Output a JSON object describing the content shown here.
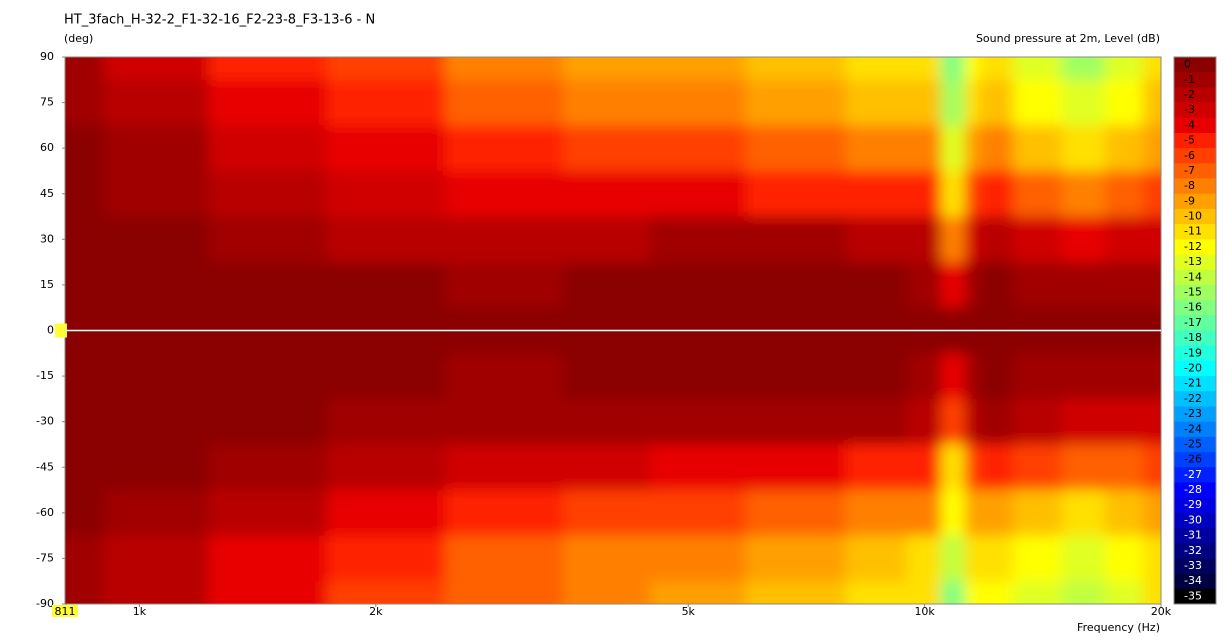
{
  "chart_data": {
    "type": "contour",
    "title": "HT_3fach_H-32-2_F1-32-16_F2-23-8_F3-13-6 - N",
    "ylabel": "(deg)",
    "xlabel": "Frequency  (Hz)",
    "colorbar_label": "Sound pressure at 2m, Level  (dB)",
    "xscale": "log",
    "xlim": [
      811,
      20000
    ],
    "xticks": [
      811,
      {
        "value": 1000,
        "label": "1k"
      },
      {
        "value": 2000,
        "label": "2k"
      },
      {
        "value": 5000,
        "label": "5k"
      },
      {
        "value": 10000,
        "label": "10k"
      },
      {
        "value": 20000,
        "label": "20k"
      }
    ],
    "ylim": [
      -90,
      90
    ],
    "yticks": [
      90,
      75,
      60,
      45,
      30,
      15,
      0,
      -15,
      -30,
      -45,
      -60,
      -75,
      -90
    ],
    "x": [
      811,
      1000,
      1500,
      2000,
      3000,
      4000,
      5000,
      7000,
      9000,
      10000,
      11000,
      11500,
      12000,
      14000,
      16000,
      18000,
      20000
    ],
    "y": [
      90,
      75,
      60,
      45,
      30,
      15,
      0,
      -15,
      -30,
      -45,
      -60,
      -75,
      -90
    ],
    "z": [
      [
        -1,
        -3,
        -5,
        -6,
        -8,
        -9,
        -9,
        -10,
        -11,
        -11,
        -16,
        -12,
        -11,
        -13,
        -15,
        -13,
        -11
      ],
      [
        -1,
        -2,
        -4,
        -5,
        -7,
        -8,
        -8,
        -9,
        -10,
        -10,
        -15,
        -11,
        -10,
        -12,
        -13,
        -12,
        -10
      ],
      [
        0,
        -1,
        -3,
        -4,
        -5,
        -6,
        -6,
        -7,
        -8,
        -8,
        -13,
        -9,
        -8,
        -10,
        -11,
        -10,
        -9
      ],
      [
        0,
        -1,
        -2,
        -3,
        -4,
        -4,
        -4,
        -5,
        -5,
        -5,
        -11,
        -6,
        -5,
        -7,
        -8,
        -7,
        -6
      ],
      [
        0,
        0,
        -1,
        -2,
        -2,
        -2,
        -1,
        -1,
        -2,
        -2,
        -8,
        -3,
        -2,
        -3,
        -4,
        -3,
        -3
      ],
      [
        0,
        0,
        0,
        0,
        -1,
        0,
        0,
        0,
        0,
        -1,
        -4,
        -1,
        0,
        -1,
        -1,
        -1,
        -1
      ],
      [
        0,
        0,
        0,
        0,
        0,
        0,
        0,
        0,
        0,
        0,
        0,
        0,
        0,
        0,
        0,
        0,
        0
      ],
      [
        0,
        0,
        0,
        0,
        -1,
        0,
        0,
        0,
        0,
        -1,
        -4,
        -1,
        0,
        -1,
        -1,
        -1,
        -1
      ],
      [
        0,
        0,
        0,
        -1,
        -1,
        -1,
        -1,
        -1,
        -1,
        -2,
        -6,
        -2,
        -1,
        -2,
        -3,
        -3,
        -3
      ],
      [
        0,
        0,
        -1,
        -2,
        -3,
        -3,
        -4,
        -4,
        -5,
        -5,
        -11,
        -6,
        -5,
        -6,
        -7,
        -7,
        -6
      ],
      [
        0,
        -1,
        -2,
        -4,
        -5,
        -6,
        -6,
        -7,
        -8,
        -8,
        -12,
        -9,
        -9,
        -10,
        -11,
        -10,
        -9
      ],
      [
        -1,
        -2,
        -4,
        -5,
        -7,
        -8,
        -8,
        -9,
        -10,
        -11,
        -14,
        -11,
        -11,
        -12,
        -13,
        -12,
        -11
      ],
      [
        -1,
        -2,
        -4,
        -6,
        -7,
        -8,
        -9,
        -10,
        -11,
        -11,
        -16,
        -12,
        -12,
        -13,
        -14,
        -13,
        -11
      ]
    ],
    "levels": [
      0,
      -1,
      -2,
      -3,
      -4,
      -5,
      -6,
      -7,
      -8,
      -9,
      -10,
      -11,
      -12,
      -13,
      -14,
      -15,
      -16,
      -17,
      -18,
      -19,
      -20,
      -21,
      -22,
      -23,
      -24,
      -25,
      -26,
      -27,
      -28,
      -29,
      -30,
      -31,
      -32,
      -33,
      -34,
      -35
    ],
    "colors": [
      "#8b0000",
      "#a00000",
      "#b80000",
      "#d00000",
      "#e80000",
      "#ff2000",
      "#ff4000",
      "#ff6000",
      "#ff8000",
      "#ffa000",
      "#ffc000",
      "#ffe000",
      "#ffff00",
      "#e0ff20",
      "#c0ff40",
      "#a0ff60",
      "#80ff80",
      "#60ffa0",
      "#40ffc0",
      "#20ffe0",
      "#00ffff",
      "#00e0ff",
      "#00c0ff",
      "#00a0ff",
      "#0080ff",
      "#0060ff",
      "#0040ff",
      "#0020ff",
      "#0000ff",
      "#0000e0",
      "#0000c0",
      "#0000a0",
      "#000080",
      "#000060",
      "#000040",
      "#000000"
    ]
  }
}
